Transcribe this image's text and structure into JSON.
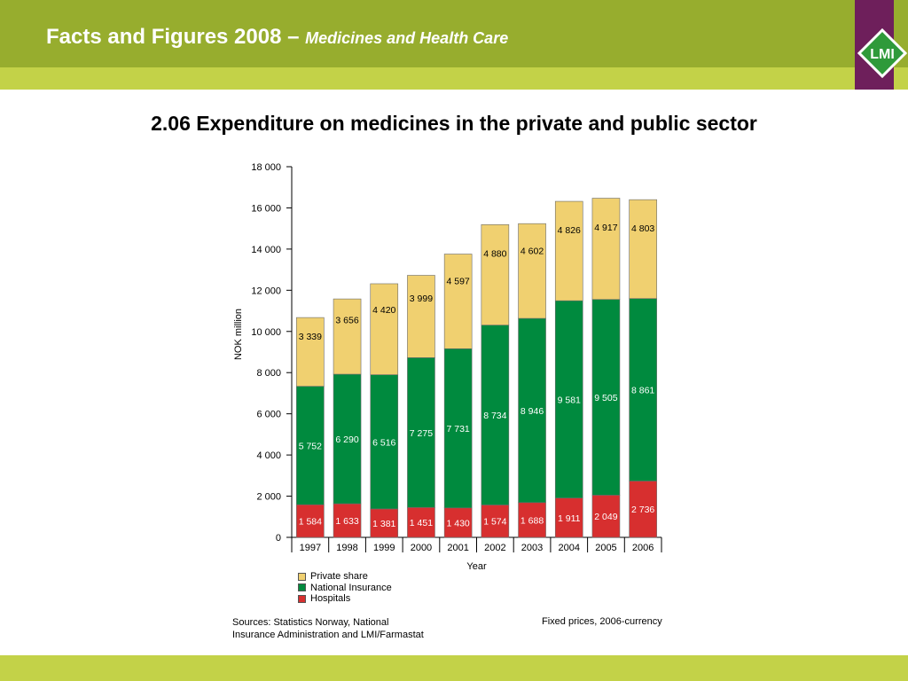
{
  "header": {
    "title": "Facts and Figures 2008 –",
    "subtitle": "Medicines and Health Care",
    "logo_text": "LMI"
  },
  "slide_title": "2.06 Expenditure on medicines in the private and public sector",
  "colors": {
    "header": "#97ad2e",
    "strip": "#c3d248",
    "logo": "#6e1f5b",
    "private": "#f0d070",
    "national_insurance": "#008a3e",
    "hospitals": "#d72f2f"
  },
  "chart_data": {
    "type": "bar",
    "stacked": true,
    "categories": [
      "1997",
      "1998",
      "1999",
      "2000",
      "2001",
      "2002",
      "2003",
      "2004",
      "2005",
      "2006"
    ],
    "series": [
      {
        "name": "Hospitals",
        "color": "#d72f2f",
        "values": [
          1584,
          1633,
          1381,
          1451,
          1430,
          1574,
          1688,
          1911,
          2049,
          2736
        ],
        "labels": [
          "1 584",
          "1 633",
          "1 381",
          "1 451",
          "1 430",
          "1 574",
          "1 688",
          "1 911",
          "2 049",
          "2 736"
        ]
      },
      {
        "name": "National Insurance",
        "color": "#008a3e",
        "values": [
          5752,
          6290,
          6516,
          7275,
          7731,
          8734,
          8946,
          9581,
          9505,
          8861
        ],
        "labels": [
          "5 752",
          "6 290",
          "6 516",
          "7 275",
          "7 731",
          "8 734",
          "8 946",
          "9 581",
          "9 505",
          "8 861"
        ]
      },
      {
        "name": "Private share",
        "color": "#f0d070",
        "values": [
          3339,
          3656,
          4420,
          3999,
          4597,
          4880,
          4602,
          4826,
          4917,
          4803
        ],
        "labels": [
          "3 339",
          "3 656",
          "4 420",
          "3 999",
          "4 597",
          "4 880",
          "4 602",
          "4 826",
          "4 917",
          "4 803"
        ]
      }
    ],
    "ylim": [
      0,
      18000
    ],
    "yticks": [
      0,
      2000,
      4000,
      6000,
      8000,
      10000,
      12000,
      14000,
      16000,
      18000
    ],
    "ytick_labels": [
      "0",
      "2 000",
      "4 000",
      "6 000",
      "8 000",
      "10 000",
      "12 000",
      "14 000",
      "16 000",
      "18 000"
    ],
    "xlabel": "Year",
    "ylabel": "NOK million",
    "grid": false,
    "legend_position": "bottom-left"
  },
  "legend": [
    {
      "label": "Private share",
      "color": "#f0d070"
    },
    {
      "label": "National Insurance",
      "color": "#008a3e"
    },
    {
      "label": "Hospitals",
      "color": "#d72f2f"
    }
  ],
  "source": {
    "line1": "Sources: Statistics Norway, National",
    "line2": "Insurance Administration and LMI/Farmastat"
  },
  "note": "Fixed prices, 2006-currency"
}
